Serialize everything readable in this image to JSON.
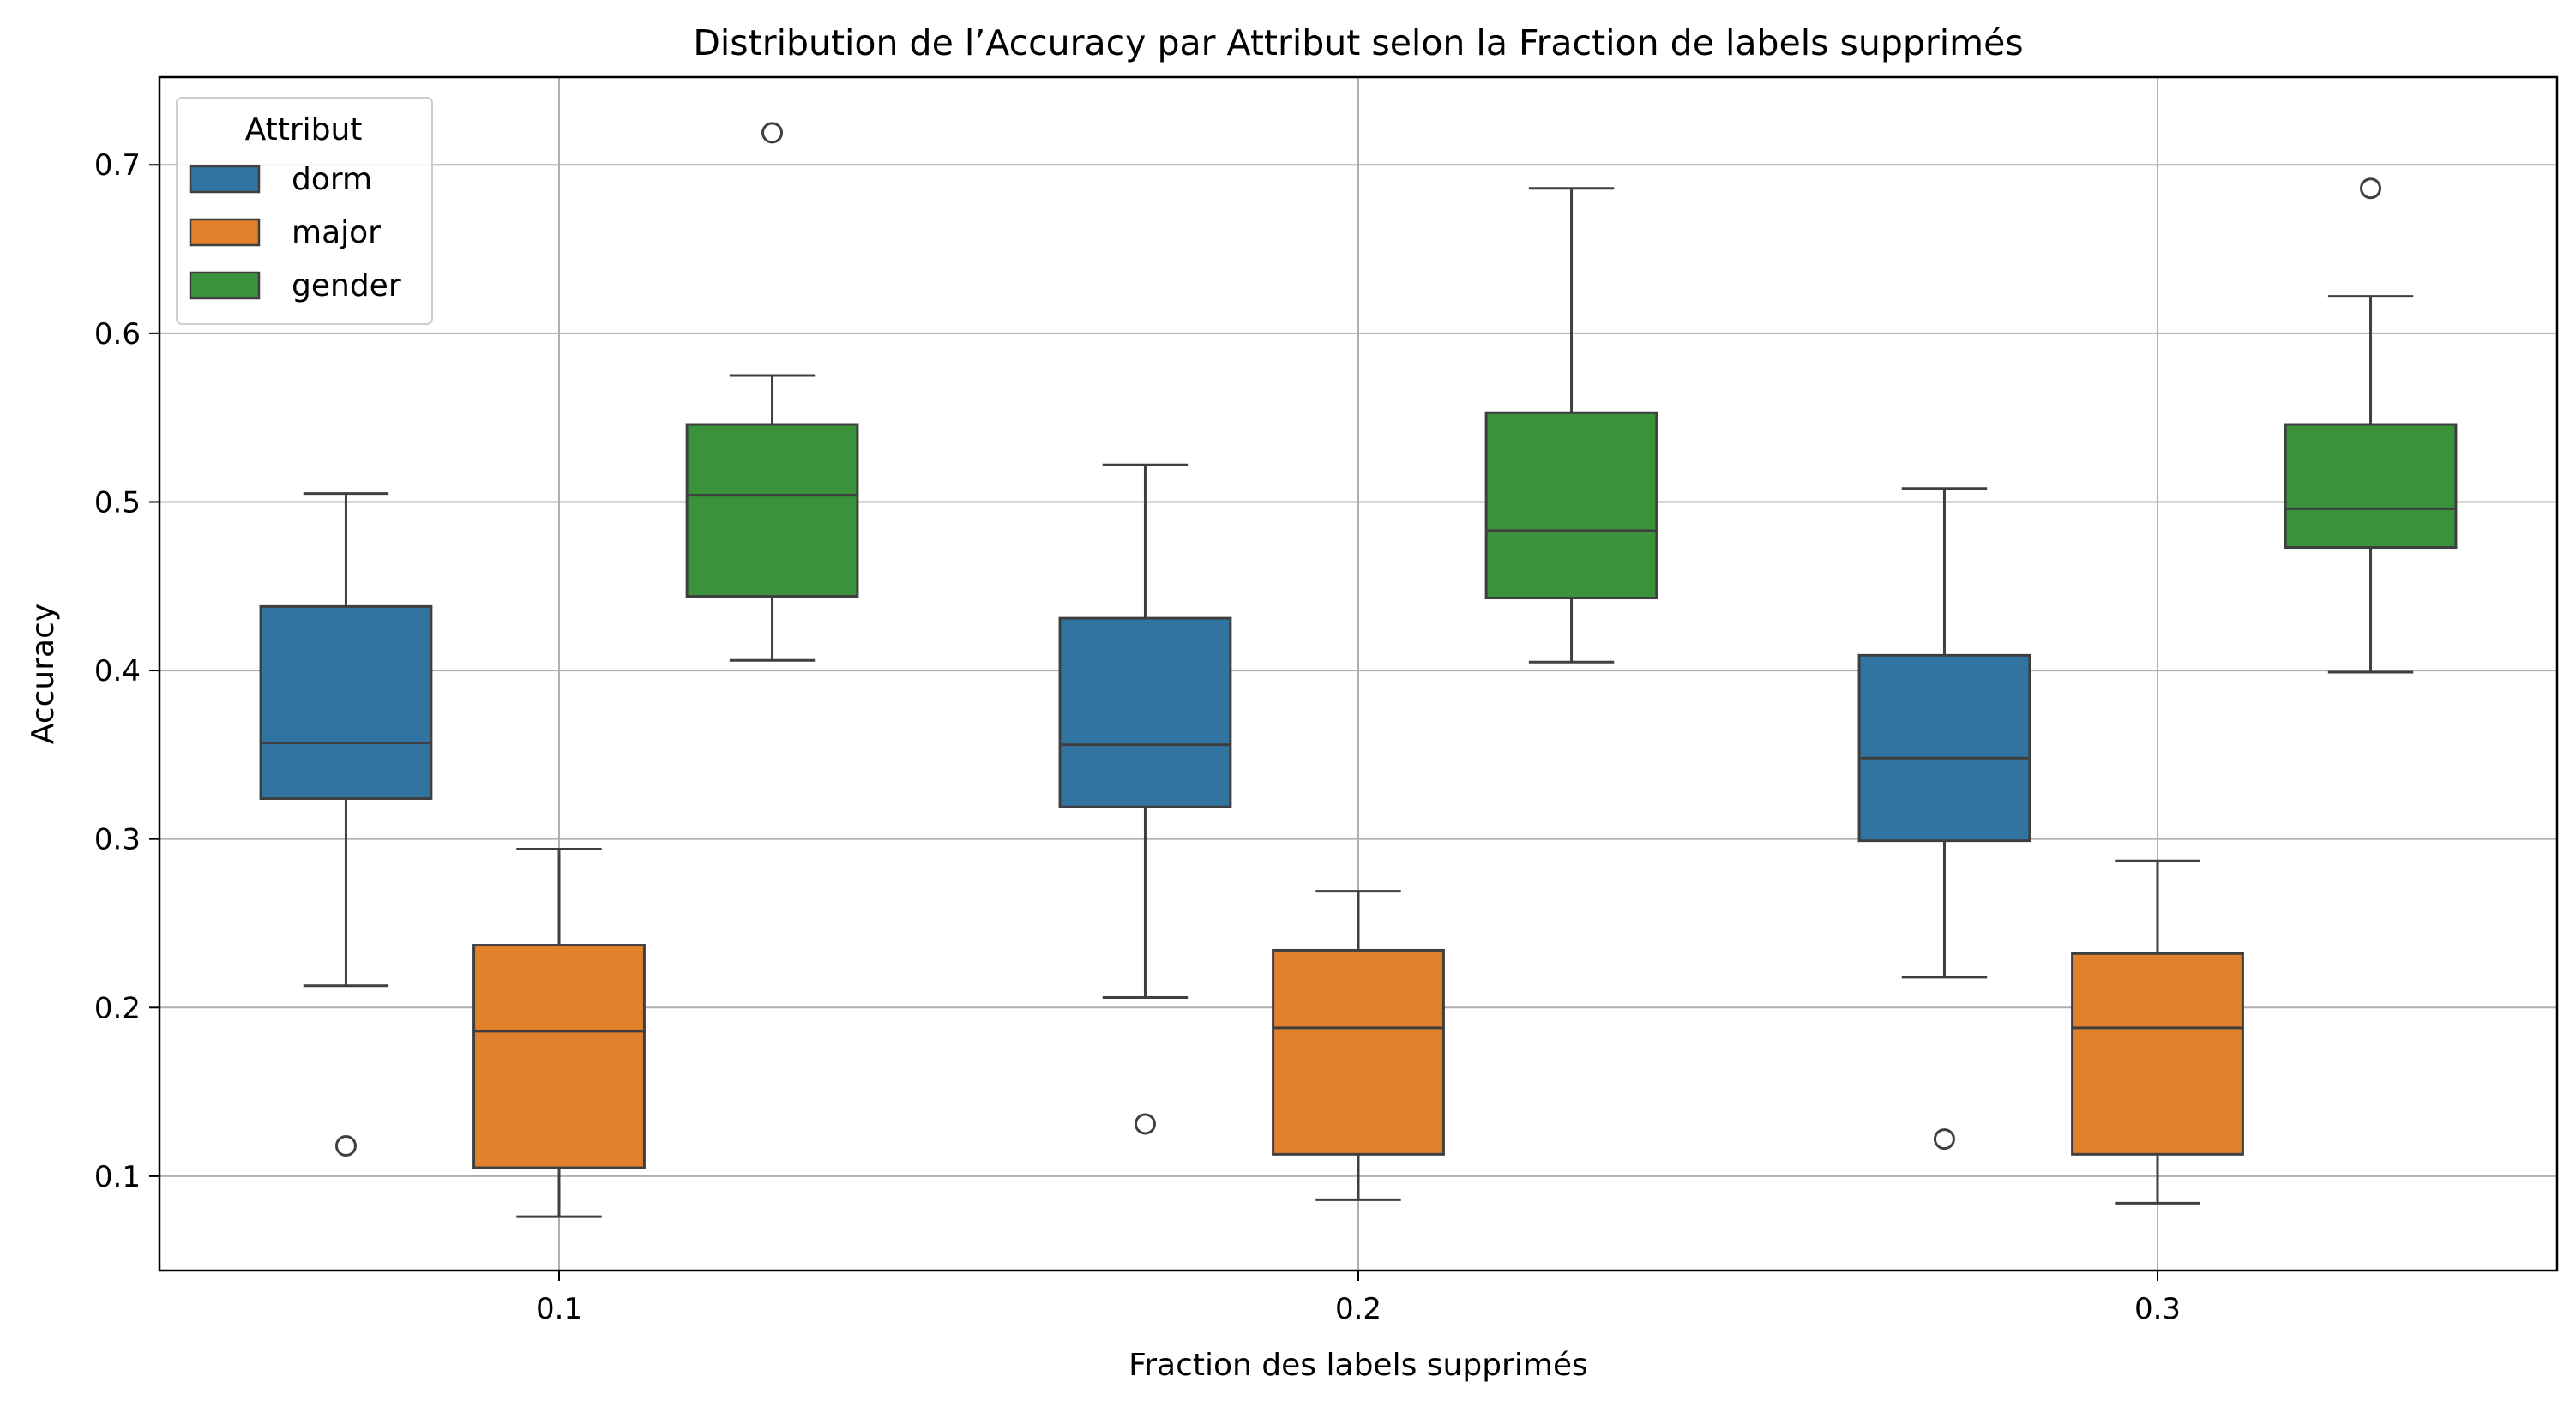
{
  "chart_data": {
    "type": "box",
    "title": "Distribution de l’Accuracy par Attribut selon la Fraction de labels supprimés",
    "xlabel": "Fraction des labels supprimés",
    "ylabel": "Accuracy",
    "categories": [
      "0.1",
      "0.2",
      "0.3"
    ],
    "ylim": [
      0.044,
      0.752
    ],
    "yticks": [
      0.1,
      0.2,
      0.3,
      0.4,
      0.5,
      0.6,
      0.7
    ],
    "ytick_labels": [
      "0.1",
      "0.2",
      "0.3",
      "0.4",
      "0.5",
      "0.6",
      "0.7"
    ],
    "grid": true,
    "legend": {
      "title": "Attribut",
      "placement": "top-left"
    },
    "series": [
      {
        "name": "dorm",
        "color": "#3274a1",
        "boxes": [
          {
            "whisker_low": 0.213,
            "q1": 0.324,
            "median": 0.357,
            "q3": 0.438,
            "whisker_high": 0.505,
            "outliers": [
              0.118
            ]
          },
          {
            "whisker_low": 0.206,
            "q1": 0.319,
            "median": 0.356,
            "q3": 0.431,
            "whisker_high": 0.522,
            "outliers": [
              0.131
            ]
          },
          {
            "whisker_low": 0.218,
            "q1": 0.299,
            "median": 0.348,
            "q3": 0.409,
            "whisker_high": 0.508,
            "outliers": [
              0.122
            ]
          }
        ]
      },
      {
        "name": "major",
        "color": "#e1812c",
        "boxes": [
          {
            "whisker_low": 0.076,
            "q1": 0.105,
            "median": 0.186,
            "q3": 0.237,
            "whisker_high": 0.294,
            "outliers": []
          },
          {
            "whisker_low": 0.086,
            "q1": 0.113,
            "median": 0.188,
            "q3": 0.234,
            "whisker_high": 0.269,
            "outliers": []
          },
          {
            "whisker_low": 0.084,
            "q1": 0.113,
            "median": 0.188,
            "q3": 0.232,
            "whisker_high": 0.287,
            "outliers": []
          }
        ]
      },
      {
        "name": "gender",
        "color": "#3a923a",
        "boxes": [
          {
            "whisker_low": 0.406,
            "q1": 0.444,
            "median": 0.504,
            "q3": 0.546,
            "whisker_high": 0.575,
            "outliers": [
              0.719
            ]
          },
          {
            "whisker_low": 0.405,
            "q1": 0.443,
            "median": 0.483,
            "q3": 0.553,
            "whisker_high": 0.686,
            "outliers": []
          },
          {
            "whisker_low": 0.399,
            "q1": 0.473,
            "median": 0.496,
            "q3": 0.546,
            "whisker_high": 0.622,
            "outliers": [
              0.686
            ]
          }
        ]
      }
    ]
  }
}
